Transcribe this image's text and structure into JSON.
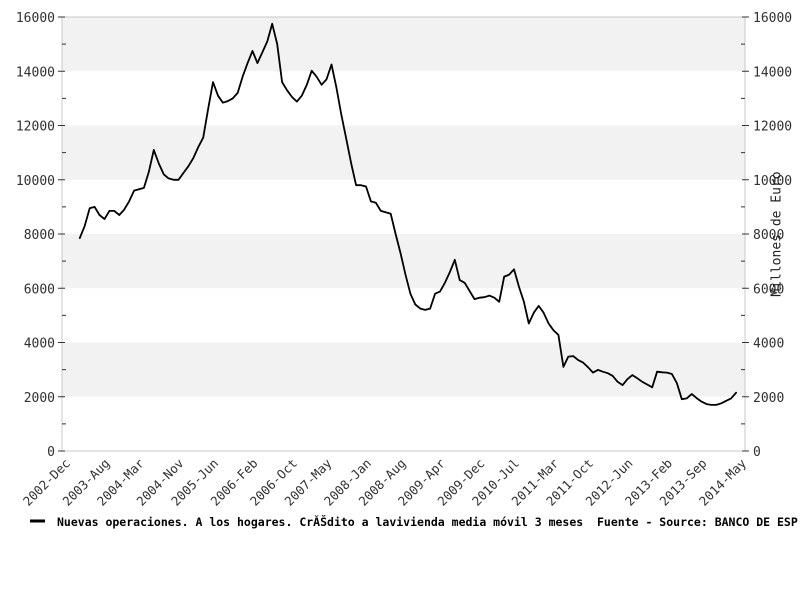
{
  "chart_data": {
    "type": "line",
    "title": "",
    "ylabel_right": "Millones de Euro",
    "ylim": [
      0,
      16000
    ],
    "y_major_step": 2000,
    "y_minor_step": 1000,
    "y_tick_labels": [
      "0",
      "2000",
      "4000",
      "6000",
      "8000",
      "10000",
      "12000",
      "14000",
      "16000"
    ],
    "grid": "alternating horizontal bands",
    "legend_position": "bottom-left",
    "months_total": 137,
    "x_ticks": [
      {
        "label": "2002-Dec",
        "month": 0
      },
      {
        "label": "2003-Aug",
        "month": 8
      },
      {
        "label": "2004-Mar",
        "month": 15
      },
      {
        "label": "2004-Nov",
        "month": 23
      },
      {
        "label": "2005-Jun",
        "month": 30
      },
      {
        "label": "2006-Feb",
        "month": 38
      },
      {
        "label": "2006-Oct",
        "month": 46
      },
      {
        "label": "2007-May",
        "month": 53
      },
      {
        "label": "2008-Jan",
        "month": 61
      },
      {
        "label": "2008-Aug",
        "month": 68
      },
      {
        "label": "2009-Apr",
        "month": 76
      },
      {
        "label": "2009-Dec",
        "month": 84
      },
      {
        "label": "2010-Jul",
        "month": 91
      },
      {
        "label": "2011-Mar",
        "month": 99
      },
      {
        "label": "2011-Oct",
        "month": 106
      },
      {
        "label": "2012-Jun",
        "month": 114
      },
      {
        "label": "2013-Feb",
        "month": 122
      },
      {
        "label": "2013-Sep",
        "month": 129
      },
      {
        "label": "2014-May",
        "month": 137
      }
    ],
    "series": [
      {
        "name": "Nuevas operaciones. A los hogares. CrĂŠdito a lavivienda media móvil 3 meses",
        "start_month": 3,
        "values": [
          7850,
          8300,
          8950,
          9000,
          8700,
          8550,
          8850,
          8850,
          8700,
          8900,
          9200,
          9600,
          9650,
          9700,
          10300,
          11100,
          10600,
          10200,
          10050,
          10000,
          10000,
          10250,
          10500,
          10800,
          11200,
          11550,
          12600,
          13600,
          13100,
          12840,
          12900,
          13000,
          13200,
          13800,
          14300,
          14750,
          14300,
          14700,
          15100,
          15750,
          15000,
          13600,
          13300,
          13050,
          12880,
          13100,
          13500,
          14020,
          13800,
          13500,
          13700,
          14250,
          13400,
          12400,
          11500,
          10600,
          9800,
          9800,
          9750,
          9200,
          9150,
          8850,
          8800,
          8750,
          8000,
          7300,
          6500,
          5800,
          5400,
          5250,
          5200,
          5250,
          5800,
          5875,
          6200,
          6600,
          7050,
          6300,
          6200,
          5900,
          5600,
          5650,
          5670,
          5730,
          5650,
          5500,
          6430,
          6500,
          6700,
          6050,
          5500,
          4700,
          5100,
          5350,
          5100,
          4700,
          4450,
          4280,
          3100,
          3480,
          3500,
          3350,
          3260,
          3090,
          2890,
          2990,
          2925,
          2870,
          2770,
          2550,
          2430,
          2650,
          2800,
          2680,
          2550,
          2450,
          2350,
          2925,
          2900,
          2890,
          2840,
          2500,
          1910,
          1940,
          2100,
          1950,
          1820,
          1730,
          1700,
          1700,
          1760,
          1850,
          1940,
          2150
        ]
      }
    ],
    "legend": {
      "series_label": "Nuevas operaciones. A los hogares. CrĂŠdito a lavivienda media móvil 3 meses",
      "source_label": "Fuente - Source: BANCO DE ESP"
    }
  },
  "colors": {
    "background": "#ffffff",
    "band_gray": "#f2f2f2",
    "plot_border": "#c8c8c8",
    "tick_mark": "#333333",
    "tick_text": "#303030",
    "series_line": "#000000"
  }
}
